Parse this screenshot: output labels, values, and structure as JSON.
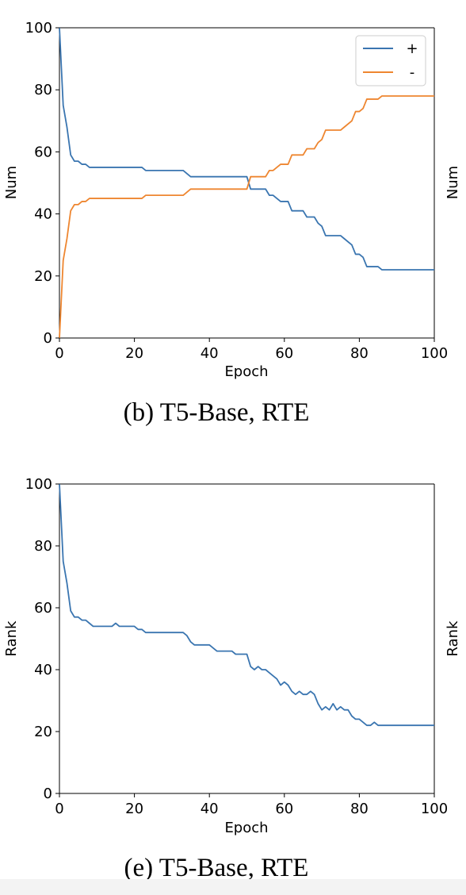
{
  "captions": {
    "top": "(b) T5-Base, RTE",
    "bottom": "(e) T5-Base, RTE"
  },
  "partial_labels": {
    "top": "Num",
    "bottom": "Rank"
  },
  "colors": {
    "plus": "#3a75b0",
    "minus": "#ee8630"
  },
  "chart_data": [
    {
      "type": "line",
      "title": "",
      "xlabel": "Epoch",
      "ylabel": "Num",
      "xlim": [
        0,
        100
      ],
      "ylim": [
        0,
        100
      ],
      "x_ticks": [
        "0",
        "20",
        "40",
        "60",
        "80",
        "100"
      ],
      "y_ticks": [
        "0",
        "20",
        "40",
        "60",
        "80",
        "100"
      ],
      "legend": {
        "placement": "top-right"
      },
      "series": [
        {
          "name": "+",
          "color": "#3a75b0",
          "points": [
            [
              0,
              100
            ],
            [
              1,
              75
            ],
            [
              2,
              68
            ],
            [
              3,
              59
            ],
            [
              4,
              57
            ],
            [
              5,
              57
            ],
            [
              6,
              56
            ],
            [
              7,
              56
            ],
            [
              8,
              55
            ],
            [
              22,
              55
            ],
            [
              23,
              54
            ],
            [
              33,
              54
            ],
            [
              35,
              52
            ],
            [
              50,
              52
            ],
            [
              51,
              48
            ],
            [
              55,
              48
            ],
            [
              56,
              46
            ],
            [
              57,
              46
            ],
            [
              59,
              44
            ],
            [
              61,
              44
            ],
            [
              62,
              41
            ],
            [
              65,
              41
            ],
            [
              66,
              39
            ],
            [
              68,
              39
            ],
            [
              69,
              37
            ],
            [
              70,
              36
            ],
            [
              71,
              33
            ],
            [
              75,
              33
            ],
            [
              76,
              32
            ],
            [
              78,
              30
            ],
            [
              79,
              27
            ],
            [
              80,
              27
            ],
            [
              81,
              26
            ],
            [
              82,
              23
            ],
            [
              85,
              23
            ],
            [
              86,
              22
            ],
            [
              100,
              22
            ]
          ]
        },
        {
          "name": "-",
          "color": "#ee8630",
          "points": [
            [
              0,
              0
            ],
            [
              1,
              25
            ],
            [
              2,
              32
            ],
            [
              3,
              41
            ],
            [
              4,
              43
            ],
            [
              5,
              43
            ],
            [
              6,
              44
            ],
            [
              7,
              44
            ],
            [
              8,
              45
            ],
            [
              22,
              45
            ],
            [
              23,
              46
            ],
            [
              33,
              46
            ],
            [
              35,
              48
            ],
            [
              50,
              48
            ],
            [
              51,
              52
            ],
            [
              55,
              52
            ],
            [
              56,
              54
            ],
            [
              57,
              54
            ],
            [
              59,
              56
            ],
            [
              61,
              56
            ],
            [
              62,
              59
            ],
            [
              65,
              59
            ],
            [
              66,
              61
            ],
            [
              68,
              61
            ],
            [
              69,
              63
            ],
            [
              70,
              64
            ],
            [
              71,
              67
            ],
            [
              75,
              67
            ],
            [
              76,
              68
            ],
            [
              78,
              70
            ],
            [
              79,
              73
            ],
            [
              80,
              73
            ],
            [
              81,
              74
            ],
            [
              82,
              77
            ],
            [
              85,
              77
            ],
            [
              86,
              78
            ],
            [
              100,
              78
            ]
          ]
        }
      ]
    },
    {
      "type": "line",
      "title": "",
      "xlabel": "Epoch",
      "ylabel": "Rank",
      "xlim": [
        0,
        100
      ],
      "ylim": [
        0,
        100
      ],
      "x_ticks": [
        "0",
        "20",
        "40",
        "60",
        "80",
        "100"
      ],
      "y_ticks": [
        "0",
        "20",
        "40",
        "60",
        "80",
        "100"
      ],
      "series": [
        {
          "color": "#3a75b0",
          "points": [
            [
              0,
              100
            ],
            [
              1,
              75
            ],
            [
              2,
              68
            ],
            [
              3,
              59
            ],
            [
              4,
              57
            ],
            [
              5,
              57
            ],
            [
              6,
              56
            ],
            [
              7,
              56
            ],
            [
              8,
              55
            ],
            [
              9,
              54
            ],
            [
              14,
              54
            ],
            [
              15,
              55
            ],
            [
              16,
              54
            ],
            [
              20,
              54
            ],
            [
              21,
              53
            ],
            [
              22,
              53
            ],
            [
              23,
              52
            ],
            [
              33,
              52
            ],
            [
              34,
              51
            ],
            [
              35,
              49
            ],
            [
              36,
              48
            ],
            [
              40,
              48
            ],
            [
              41,
              47
            ],
            [
              42,
              46
            ],
            [
              46,
              46
            ],
            [
              47,
              45
            ],
            [
              50,
              45
            ],
            [
              51,
              41
            ],
            [
              52,
              40
            ],
            [
              53,
              41
            ],
            [
              54,
              40
            ],
            [
              55,
              40
            ],
            [
              56,
              39
            ],
            [
              58,
              37
            ],
            [
              59,
              35
            ],
            [
              60,
              36
            ],
            [
              61,
              35
            ],
            [
              62,
              33
            ],
            [
              63,
              32
            ],
            [
              64,
              33
            ],
            [
              65,
              32
            ],
            [
              66,
              32
            ],
            [
              67,
              33
            ],
            [
              68,
              32
            ],
            [
              69,
              29
            ],
            [
              70,
              27
            ],
            [
              71,
              28
            ],
            [
              72,
              27
            ],
            [
              73,
              29
            ],
            [
              74,
              27
            ],
            [
              75,
              28
            ],
            [
              76,
              27
            ],
            [
              77,
              27
            ],
            [
              78,
              25
            ],
            [
              79,
              24
            ],
            [
              80,
              24
            ],
            [
              81,
              23
            ],
            [
              82,
              22
            ],
            [
              83,
              22
            ],
            [
              84,
              23
            ],
            [
              85,
              22
            ],
            [
              100,
              22
            ]
          ]
        }
      ]
    }
  ]
}
